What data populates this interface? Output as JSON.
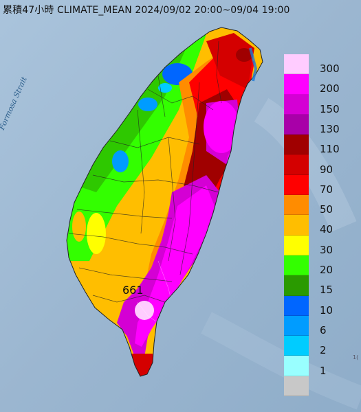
{
  "title": "累積47小時 CLIMATE_MEAN 2024/09/02 20:00~09/04 19:00",
  "strait_label": "Formosa Strait",
  "max_value_label": "661",
  "edge_note": "1(",
  "legend": [
    {
      "label": "300",
      "color": "#ffccff"
    },
    {
      "label": "200",
      "color": "#ff00ff"
    },
    {
      "label": "150",
      "color": "#d400d4"
    },
    {
      "label": "130",
      "color": "#a800a8"
    },
    {
      "label": "110",
      "color": "#a00000"
    },
    {
      "label": "90",
      "color": "#d40000"
    },
    {
      "label": "70",
      "color": "#ff0000"
    },
    {
      "label": "50",
      "color": "#ff8c00"
    },
    {
      "label": "40",
      "color": "#ffbe00"
    },
    {
      "label": "30",
      "color": "#ffff00"
    },
    {
      "label": "20",
      "color": "#33ff00"
    },
    {
      "label": "15",
      "color": "#2a9a00"
    },
    {
      "label": "10",
      "color": "#0066ff"
    },
    {
      "label": "6",
      "color": "#009cff"
    },
    {
      "label": "2",
      "color": "#00ccff"
    },
    {
      "label": "1",
      "color": "#99ffff"
    },
    {
      "label": "",
      "color": "#c8c8c8"
    }
  ]
}
